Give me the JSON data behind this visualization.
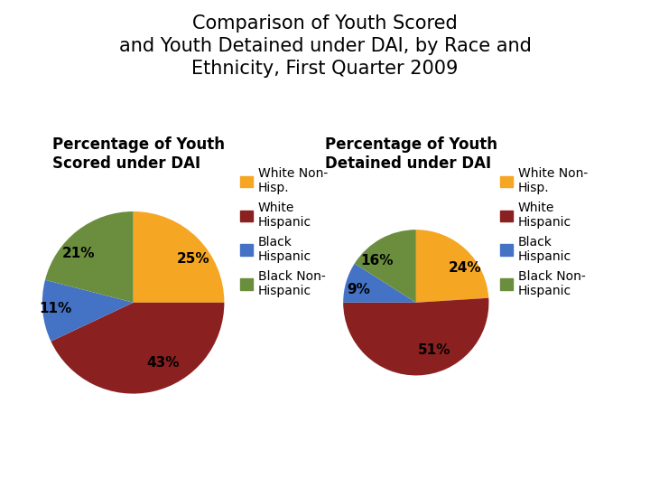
{
  "title": "Comparison of Youth Scored\nand Youth Detained under DAI, by Race and\nEthnicity, First Quarter 2009",
  "title_fontsize": 15,
  "subtitle_left": "Percentage of Youth\nScored under DAI",
  "subtitle_right": "Percentage of Youth\nDetained under DAI",
  "subtitle_fontsize": 12,
  "legend_labels": [
    "White Non-\nHisp.",
    "White\nHispanic",
    "Black\nHispanic",
    "Black Non-\nHispanic"
  ],
  "colors": [
    "#F5A623",
    "#8B2020",
    "#4472C4",
    "#6B8E3E"
  ],
  "pie1_values": [
    25,
    43,
    11,
    21
  ],
  "pie1_labels": [
    "25%",
    "43%",
    "11%",
    "21%"
  ],
  "pie2_values": [
    24,
    51,
    9,
    16
  ],
  "pie2_labels": [
    "24%",
    "51%",
    "9%",
    "16%"
  ],
  "background_color": "#FFFFFF",
  "label_fontsize": 11,
  "legend_fontsize": 10
}
